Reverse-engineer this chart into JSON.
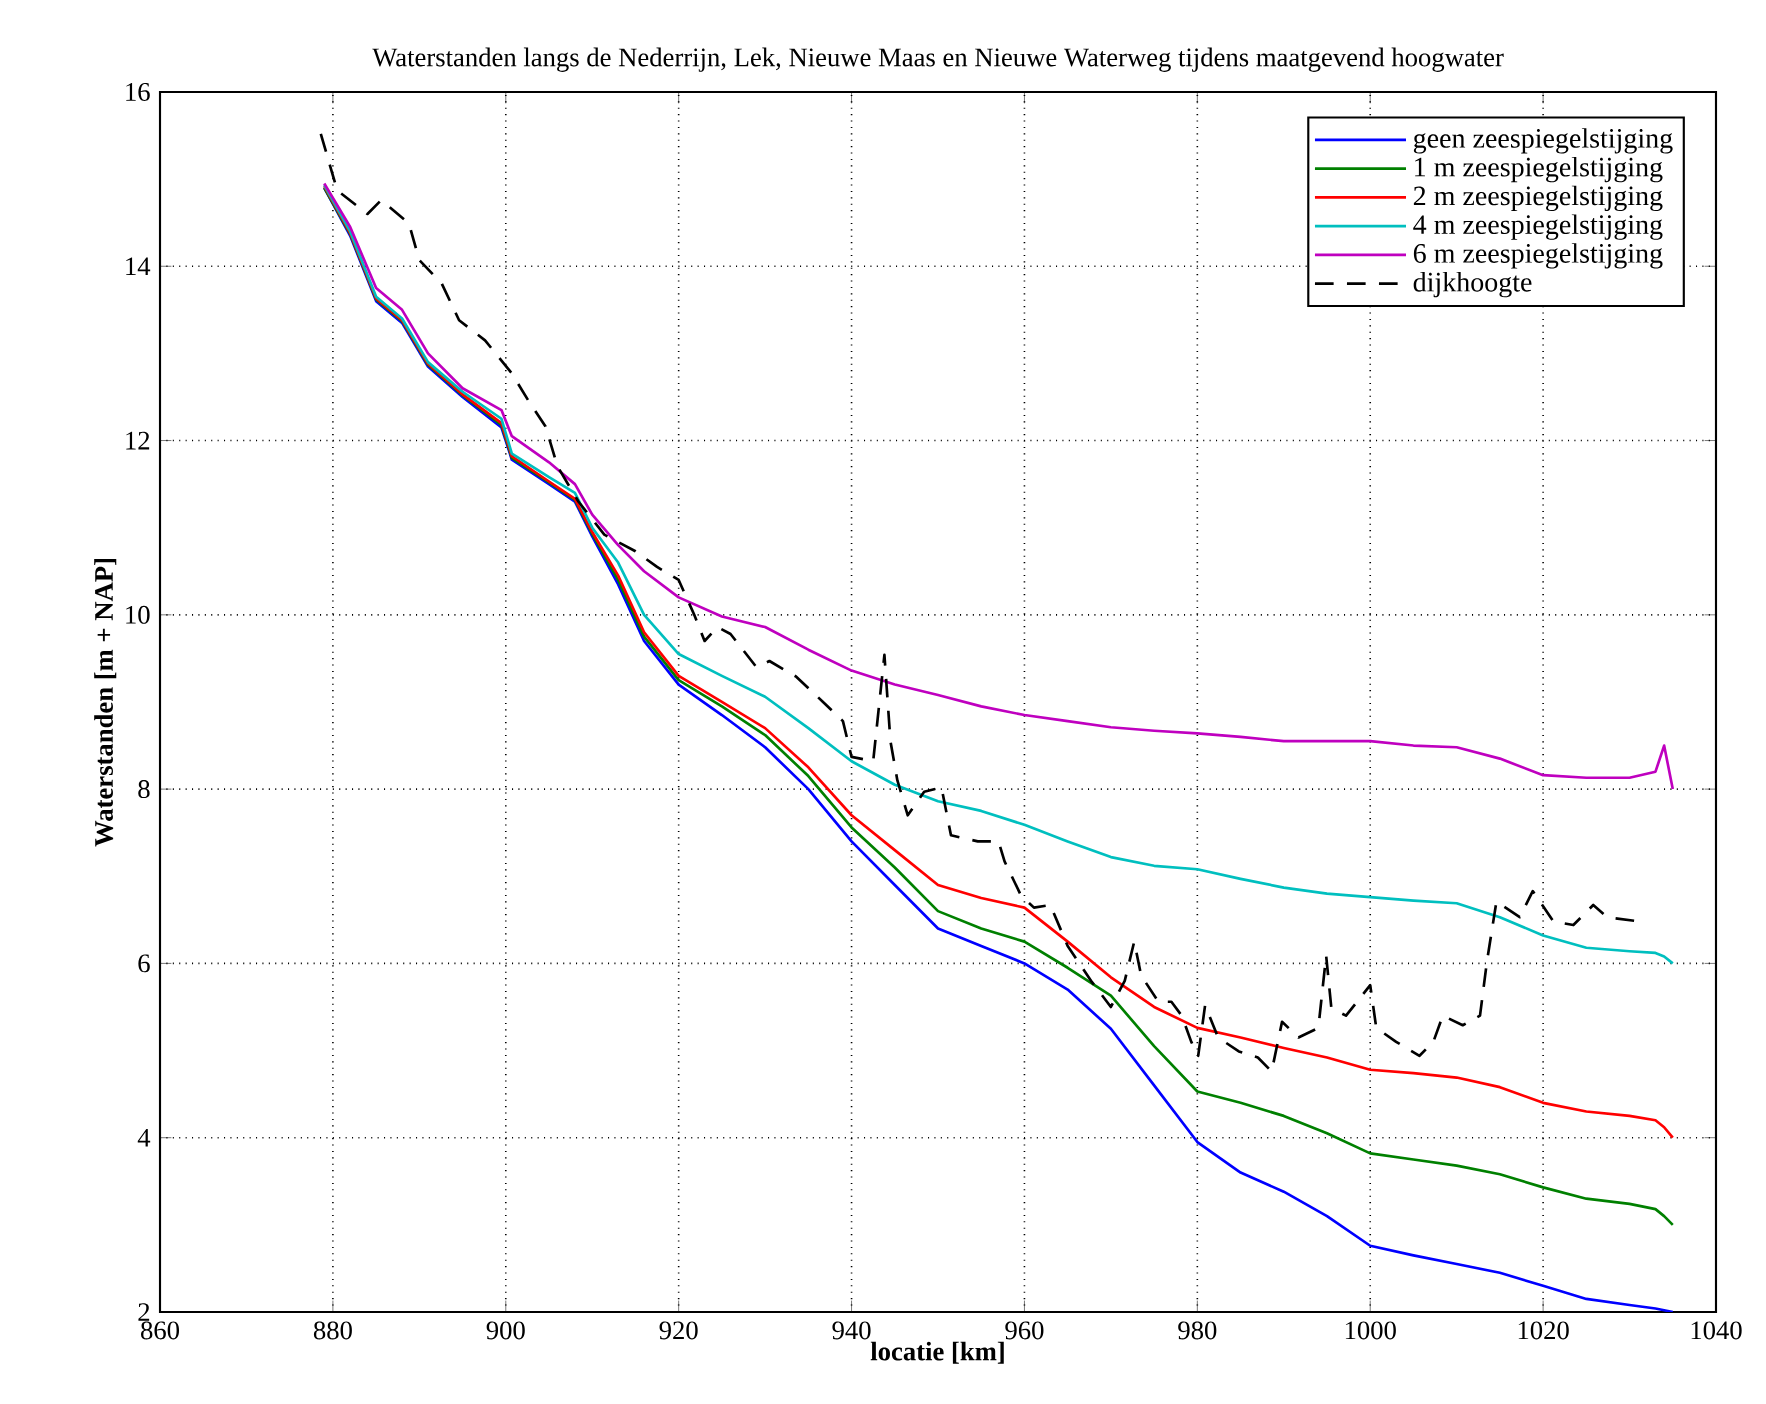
{
  "chart_data": {
    "type": "line",
    "title": "Waterstanden langs de Nederrijn, Lek, Nieuwe Maas en Nieuwe Waterweg tijdens maatgevend hoogwater",
    "xlabel": "locatie [km]",
    "ylabel": "Waterstanden [m + NAP]",
    "xlim": [
      860,
      1040
    ],
    "ylim": [
      2,
      16
    ],
    "xticks": [
      860,
      880,
      900,
      920,
      940,
      960,
      980,
      1000,
      1020,
      1040
    ],
    "yticks": [
      2,
      4,
      6,
      8,
      10,
      12,
      14,
      16
    ],
    "grid": true,
    "legend": "top right",
    "marker": "none",
    "line_style": "solid",
    "x": [
      879,
      882,
      885,
      888,
      891,
      895,
      899.5,
      900.7,
      905,
      908,
      910,
      913,
      916,
      920,
      925,
      930,
      935,
      940,
      945,
      950,
      955,
      960,
      965,
      970,
      975,
      980,
      985,
      990,
      995,
      1000,
      1005,
      1010,
      1015,
      1020,
      1025,
      1030,
      1033,
      1034,
      1035
    ],
    "series": [
      {
        "name": "geen zeespiegelstijging",
        "color": "#0000ff",
        "values": [
          14.9,
          14.35,
          13.6,
          13.35,
          12.85,
          12.5,
          12.15,
          11.78,
          11.5,
          11.3,
          10.9,
          10.35,
          9.7,
          9.2,
          8.85,
          8.48,
          8.0,
          7.4,
          6.9,
          6.4,
          6.2,
          6.0,
          5.7,
          5.25,
          4.6,
          3.95,
          3.6,
          3.38,
          3.1,
          2.76,
          2.65,
          2.55,
          2.45,
          2.3,
          2.15,
          2.08,
          2.04,
          2.02,
          2.0
        ]
      },
      {
        "name": "1 m zeespiegelstijging",
        "color": "#008000",
        "values": [
          14.9,
          14.37,
          13.62,
          13.37,
          12.87,
          12.52,
          12.18,
          11.8,
          11.52,
          11.32,
          10.93,
          10.4,
          9.75,
          9.25,
          8.95,
          8.62,
          8.15,
          7.56,
          7.1,
          6.6,
          6.4,
          6.25,
          5.95,
          5.63,
          5.05,
          4.53,
          4.4,
          4.25,
          4.05,
          3.82,
          3.75,
          3.68,
          3.58,
          3.43,
          3.3,
          3.24,
          3.18,
          3.1,
          3.0
        ]
      },
      {
        "name": "2 m zeespiegelstijging",
        "color": "#ff0000",
        "values": [
          14.92,
          14.38,
          13.63,
          13.38,
          12.88,
          12.53,
          12.2,
          11.82,
          11.53,
          11.33,
          10.95,
          10.45,
          9.8,
          9.3,
          9.0,
          8.7,
          8.25,
          7.7,
          7.3,
          6.9,
          6.75,
          6.64,
          6.25,
          5.84,
          5.5,
          5.26,
          5.15,
          5.03,
          4.92,
          4.78,
          4.74,
          4.69,
          4.58,
          4.4,
          4.3,
          4.25,
          4.2,
          4.12,
          4.0
        ]
      },
      {
        "name": "4 m zeespiegelstijging",
        "color": "#00bfbf",
        "values": [
          14.93,
          14.4,
          13.65,
          13.4,
          12.9,
          12.56,
          12.25,
          11.85,
          11.58,
          11.4,
          11.0,
          10.6,
          10.0,
          9.55,
          9.3,
          9.06,
          8.7,
          8.32,
          8.05,
          7.86,
          7.75,
          7.59,
          7.4,
          7.22,
          7.12,
          7.08,
          6.97,
          6.87,
          6.8,
          6.76,
          6.72,
          6.69,
          6.53,
          6.32,
          6.18,
          6.14,
          6.12,
          6.08,
          6.0
        ]
      },
      {
        "name": "6 m zeespiegelstijging",
        "color": "#bf00bf",
        "values": [
          14.95,
          14.45,
          13.75,
          13.5,
          13.0,
          12.6,
          12.35,
          12.05,
          11.75,
          11.5,
          11.15,
          10.8,
          10.5,
          10.2,
          9.98,
          9.86,
          9.6,
          9.36,
          9.2,
          9.08,
          8.95,
          8.85,
          8.78,
          8.71,
          8.67,
          8.64,
          8.6,
          8.55,
          8.55,
          8.55,
          8.5,
          8.48,
          8.35,
          8.16,
          8.13,
          8.13,
          8.2,
          8.5,
          8.0
        ]
      },
      {
        "name": "dijkhoogte",
        "color": "#000000",
        "line_style": "dashed",
        "x": [
          878.6,
          880.5,
          884,
          885.6,
          888.8,
          890,
          892.6,
          894.6,
          897.6,
          900.7,
          902.6,
          904.6,
          906,
          908.4,
          911.4,
          915,
          917.5,
          920,
          921.8,
          923,
          924.5,
          926,
          929,
          930.5,
          933.6,
          936.7,
          939,
          940,
          942.5,
          943.8,
          944.5,
          945.3,
          946.5,
          948.4,
          950.4,
          951.5,
          954.6,
          957,
          957.7,
          959.6,
          961.1,
          963,
          965,
          967.7,
          970,
          971.6,
          972.7,
          973.5,
          975.5,
          977,
          978.2,
          979.3,
          980.1,
          980.9,
          982.4,
          984.8,
          987,
          988.6,
          989.8,
          991.7,
          994,
          994.9,
          995.5,
          997.2,
          1000,
          1000.7,
          1003,
          1005.7,
          1007.3,
          1008.4,
          1010.7,
          1012.7,
          1013.5,
          1014.6,
          1017.3,
          1018.8,
          1021.2,
          1023.5,
          1025.8,
          1027.4,
          1031.2
        ],
        "values": [
          15.52,
          14.87,
          14.6,
          14.76,
          14.49,
          14.07,
          13.8,
          13.38,
          13.15,
          12.77,
          12.46,
          12.16,
          11.7,
          11.3,
          10.92,
          10.73,
          10.55,
          10.4,
          10.0,
          9.7,
          9.86,
          9.78,
          9.4,
          9.47,
          9.29,
          9.0,
          8.78,
          8.37,
          8.32,
          9.54,
          8.55,
          8.1,
          7.7,
          7.97,
          8.02,
          7.47,
          7.4,
          7.4,
          7.17,
          6.78,
          6.64,
          6.67,
          6.2,
          5.8,
          5.5,
          5.8,
          6.25,
          5.86,
          5.56,
          5.56,
          5.4,
          5.1,
          4.94,
          5.52,
          5.15,
          4.99,
          4.92,
          4.76,
          5.33,
          5.15,
          5.26,
          6.09,
          5.49,
          5.4,
          5.75,
          5.26,
          5.1,
          4.94,
          5.1,
          5.4,
          5.29,
          5.4,
          6.02,
          6.71,
          6.53,
          6.83,
          6.48,
          6.44,
          6.67,
          6.53,
          6.48
        ]
      }
    ]
  }
}
